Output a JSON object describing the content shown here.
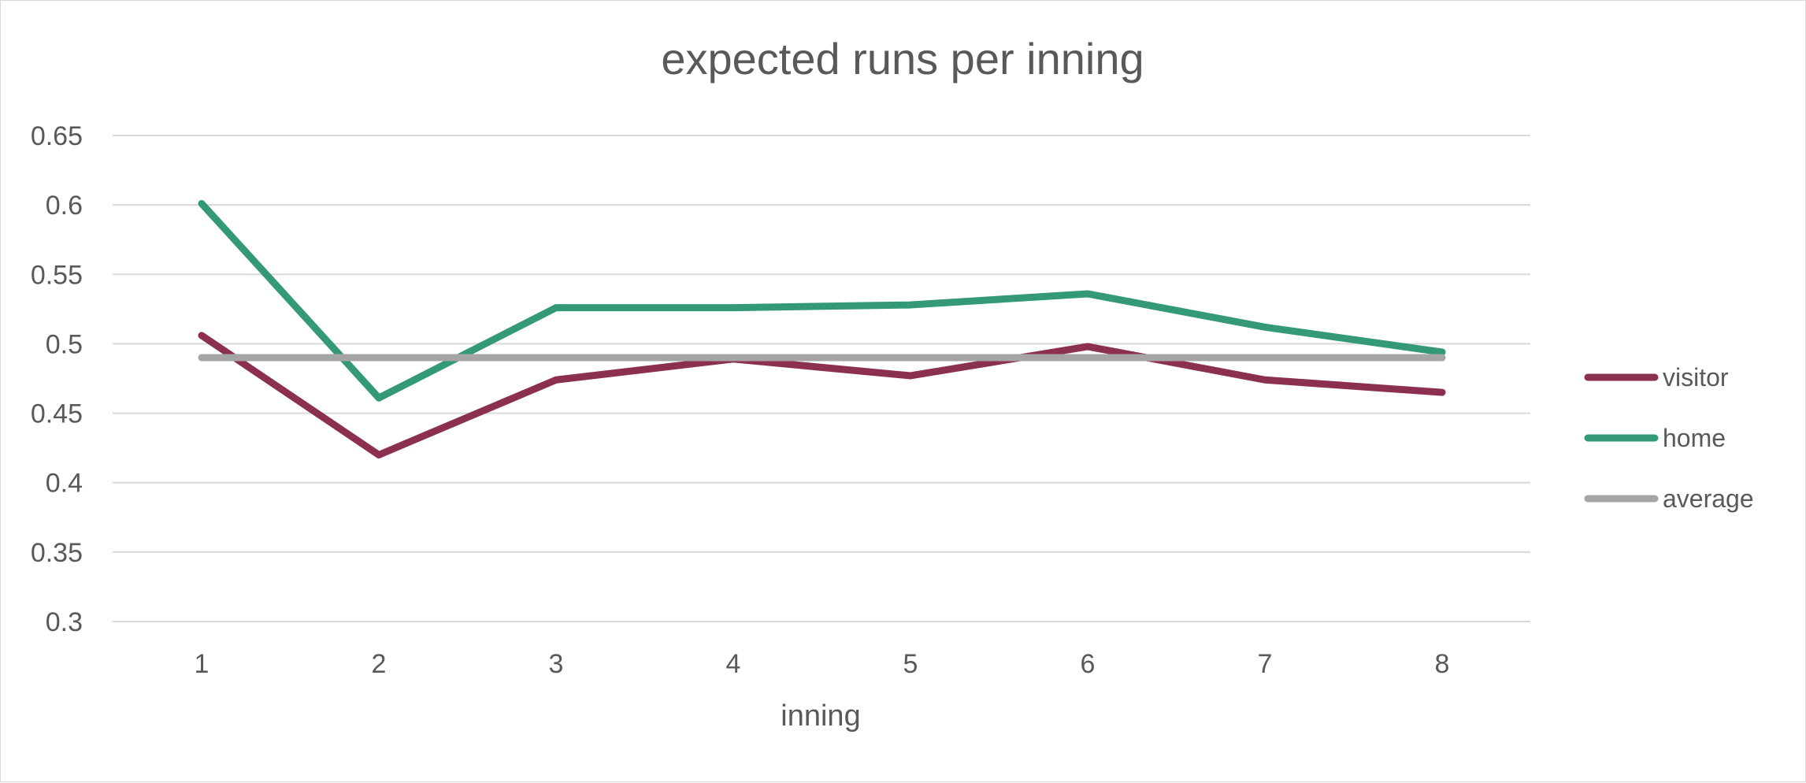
{
  "chart_data": {
    "type": "line",
    "title": "expected runs per inning",
    "xlabel": "inning",
    "ylabel": "",
    "categories": [
      "1",
      "2",
      "3",
      "4",
      "5",
      "6",
      "7",
      "8"
    ],
    "ylim": [
      0.3,
      0.65
    ],
    "yticks": [
      "0.65",
      "0.6",
      "0.55",
      "0.5",
      "0.45",
      "0.4",
      "0.35",
      "0.3"
    ],
    "ytick_values": [
      0.65,
      0.6,
      0.55,
      0.5,
      0.45,
      0.4,
      0.35,
      0.3
    ],
    "grid": true,
    "legend_position": "right",
    "series": [
      {
        "name": "visitor",
        "color": "#8B3050",
        "values": [
          0.506,
          0.42,
          0.474,
          0.489,
          0.477,
          0.498,
          0.474,
          0.465
        ]
      },
      {
        "name": "home",
        "color": "#339977",
        "values": [
          0.601,
          0.461,
          0.526,
          0.526,
          0.528,
          0.536,
          0.512,
          0.494
        ]
      },
      {
        "name": "average",
        "color": "#A5A5A5",
        "values": [
          0.49,
          0.49,
          0.49,
          0.49,
          0.49,
          0.49,
          0.49,
          0.49
        ]
      }
    ]
  }
}
